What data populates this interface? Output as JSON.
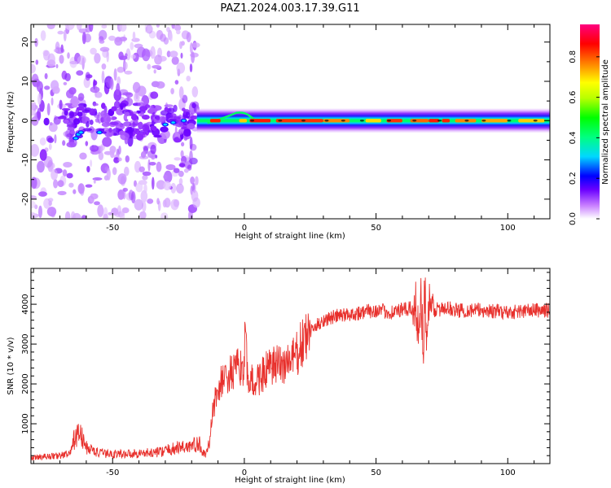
{
  "title": "PAZ1.2024.003.17.39.G11",
  "chart_data": [
    {
      "type": "heatmap",
      "xlabel": "Height of straight line (km)",
      "ylabel": "Frequency (Hz)",
      "xlim": [
        -81,
        116
      ],
      "ylim": [
        -25,
        24.5
      ],
      "x_ticks": [
        -50,
        0,
        50,
        100
      ],
      "y_ticks": [
        -20,
        -10,
        0,
        10,
        20
      ],
      "x_tick_labels": [
        "-50",
        "0",
        "50",
        "100"
      ],
      "y_tick_labels": [
        "-20",
        "-10",
        "0",
        "10",
        "20"
      ],
      "colorbar": {
        "label": "Normalized spectral amplitude",
        "range": [
          0,
          0.96
        ],
        "ticks": [
          0.0,
          0.2,
          0.4,
          0.6,
          0.8
        ],
        "tick_labels": [
          "0.0",
          "0.2",
          "0.4",
          "0.6",
          "0.8"
        ],
        "colormap": "gist_rainbow (low amplitude transparent)"
      },
      "features": {
        "noise_region_x": [
          -81,
          -18
        ],
        "line_region_x": [
          -18,
          116
        ],
        "line_frequency": 0
      }
    },
    {
      "type": "line",
      "xlabel": "Height of straight line (km)",
      "ylabel": "SNR (10 * v/v)",
      "xlim": [
        -81,
        116
      ],
      "ylim": [
        0,
        4900
      ],
      "x_ticks": [
        -50,
        0,
        50,
        100
      ],
      "y_ticks": [
        1000,
        2000,
        3000,
        4000
      ],
      "x_tick_labels": [
        "-50",
        "0",
        "50",
        "100"
      ],
      "y_tick_labels": [
        "1000",
        "2000",
        "3000",
        "4000"
      ],
      "color": "#e8302c",
      "series": [
        {
          "x": [
            -81,
            -75,
            -70,
            -66,
            -64,
            -62,
            -60,
            -55,
            -50,
            -45,
            -40,
            -35,
            -30,
            -25,
            -20,
            -17,
            -15,
            -14,
            -13,
            -12,
            -10,
            -8,
            -5,
            -2,
            0,
            0.5,
            1,
            2,
            4,
            6,
            8,
            10,
            12,
            15,
            18,
            20,
            22,
            25,
            28,
            30,
            35,
            40,
            45,
            50,
            55,
            60,
            65,
            66,
            67,
            68,
            68.5,
            69,
            70,
            71,
            73,
            76,
            78,
            80,
            90,
            100,
            110,
            116
          ],
          "values": [
            150,
            180,
            200,
            250,
            750,
            700,
            400,
            260,
            240,
            250,
            260,
            270,
            320,
            400,
            450,
            480,
            220,
            260,
            700,
            1300,
            1900,
            2100,
            2250,
            2400,
            2500,
            3600,
            2200,
            2100,
            2000,
            2200,
            2300,
            2400,
            2450,
            2500,
            2600,
            2750,
            3000,
            3300,
            3500,
            3600,
            3700,
            3750,
            3800,
            3850,
            3800,
            3850,
            3900,
            3600,
            4100,
            3000,
            4700,
            3200,
            4000,
            3700,
            3900,
            3850,
            3900,
            3850,
            3850,
            3800,
            3850,
            3850
          ]
        }
      ]
    }
  ]
}
